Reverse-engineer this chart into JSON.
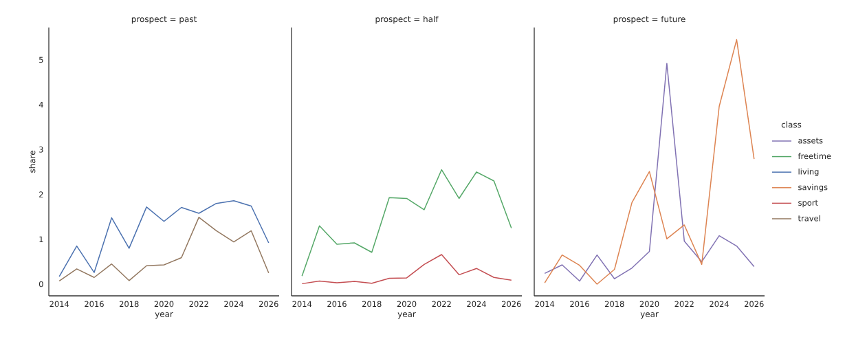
{
  "chart_data": [
    {
      "type": "line",
      "title": "prospect = past",
      "xlabel": "year",
      "ylabel": "share",
      "x": [
        2014,
        2015,
        2016,
        2017,
        2018,
        2019,
        2020,
        2021,
        2022,
        2023,
        2024,
        2025,
        2026
      ],
      "xlim": [
        2013.4,
        2026.6
      ],
      "ylim": [
        -0.26,
        5.72
      ],
      "xticks": [
        2014,
        2016,
        2018,
        2020,
        2022,
        2024,
        2026
      ],
      "yticks": [
        0,
        1,
        2,
        3,
        4,
        5
      ],
      "series": [
        {
          "name": "living",
          "color": "#4c72b0",
          "values": [
            0.17,
            0.85,
            0.26,
            1.48,
            0.8,
            1.72,
            1.4,
            1.71,
            1.58,
            1.8,
            1.86,
            1.74,
            0.92
          ]
        },
        {
          "name": "travel",
          "color": "#937860",
          "values": [
            0.07,
            0.34,
            0.15,
            0.45,
            0.08,
            0.41,
            0.43,
            0.59,
            1.49,
            1.19,
            0.94,
            1.19,
            0.25
          ]
        }
      ]
    },
    {
      "type": "line",
      "title": "prospect = half",
      "xlabel": "year",
      "x": [
        2014,
        2015,
        2016,
        2017,
        2018,
        2019,
        2020,
        2021,
        2022,
        2023,
        2024,
        2025,
        2026
      ],
      "xlim": [
        2013.4,
        2026.6
      ],
      "ylim": [
        -0.26,
        5.72
      ],
      "xticks": [
        2014,
        2016,
        2018,
        2020,
        2022,
        2024,
        2026
      ],
      "yticks": [
        0,
        1,
        2,
        3,
        4,
        5
      ],
      "tick_labels": "x",
      "series": [
        {
          "name": "freetime",
          "color": "#55a868",
          "values": [
            0.18,
            1.3,
            0.89,
            0.92,
            0.71,
            1.93,
            1.91,
            1.66,
            2.55,
            1.91,
            2.5,
            2.3,
            1.25
          ]
        },
        {
          "name": "sport",
          "color": "#c44e52",
          "values": [
            0.01,
            0.07,
            0.03,
            0.06,
            0.02,
            0.13,
            0.14,
            0.44,
            0.66,
            0.21,
            0.35,
            0.15,
            0.09
          ]
        }
      ]
    },
    {
      "type": "line",
      "title": "prospect = future",
      "xlabel": "year",
      "x": [
        2014,
        2015,
        2016,
        2017,
        2018,
        2019,
        2020,
        2021,
        2022,
        2023,
        2024,
        2025,
        2026
      ],
      "xlim": [
        2013.4,
        2026.6
      ],
      "ylim": [
        -0.26,
        5.72
      ],
      "xticks": [
        2014,
        2016,
        2018,
        2020,
        2022,
        2024,
        2026
      ],
      "yticks": [
        0,
        1,
        2,
        3,
        4,
        5
      ],
      "tick_labels": "x",
      "legend": "right",
      "legend_title": "class",
      "series": [
        {
          "name": "assets",
          "color": "#8172b3",
          "values": [
            0.24,
            0.43,
            0.07,
            0.65,
            0.12,
            0.36,
            0.73,
            4.92,
            0.96,
            0.5,
            1.08,
            0.85,
            0.39
          ]
        },
        {
          "name": "savings",
          "color": "#dd8452",
          "values": [
            0.03,
            0.65,
            0.42,
            0.0,
            0.33,
            1.82,
            2.51,
            1.01,
            1.32,
            0.44,
            3.96,
            5.45,
            2.79
          ]
        }
      ]
    }
  ]
}
